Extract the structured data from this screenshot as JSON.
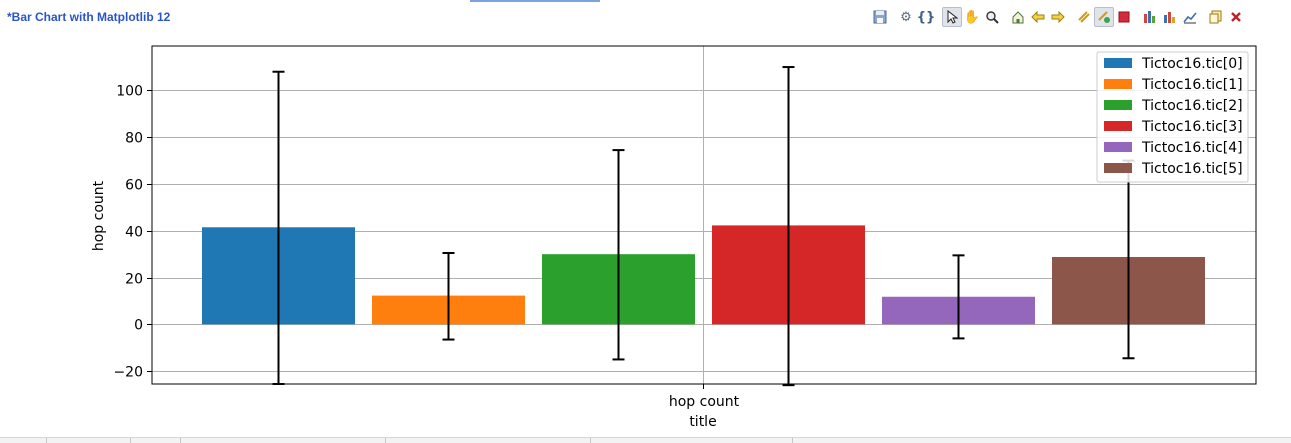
{
  "editor": {
    "title": "*Bar Chart with Matplotlib 12"
  },
  "toolbar": {
    "icons": [
      "save-icon",
      "gear-icon",
      "braces-icon",
      "pointer-icon",
      "hand-icon",
      "zoom-icon",
      "home-icon",
      "back-arrow-icon",
      "forward-arrow-icon",
      "link-icon",
      "link-active-icon",
      "stop-icon",
      "bar-chart-icon",
      "bar-chart-export-icon",
      "line-export-icon",
      "copy-icon",
      "close-icon"
    ]
  },
  "chart_data": {
    "type": "bar",
    "title": "title",
    "xlabel": "hop count",
    "ylabel": "hop count",
    "xtick": "hop count",
    "ylim": [
      -25.5,
      119
    ],
    "yticks": [
      -20,
      0,
      20,
      40,
      60,
      80,
      100
    ],
    "ytick_labels": [
      "−20",
      "0",
      "20",
      "40",
      "60",
      "80",
      "100"
    ],
    "grid": true,
    "legend_position": "top-right",
    "series": [
      {
        "name": "Tictoc16.tic[0]",
        "value": 41.5,
        "err_low": -25.5,
        "err_high": 108,
        "color": "#1f77b4"
      },
      {
        "name": "Tictoc16.tic[1]",
        "value": 12.3,
        "err_low": -6.5,
        "err_high": 30.5,
        "color": "#ff7f0e"
      },
      {
        "name": "Tictoc16.tic[2]",
        "value": 30.0,
        "err_low": -15,
        "err_high": 74.5,
        "color": "#2ca02c"
      },
      {
        "name": "Tictoc16.tic[3]",
        "value": 42.3,
        "err_low": -26,
        "err_high": 110,
        "color": "#d62728"
      },
      {
        "name": "Tictoc16.tic[4]",
        "value": 11.8,
        "err_low": -6,
        "err_high": 29.5,
        "color": "#9467bd"
      },
      {
        "name": "Tictoc16.tic[5]",
        "value": 28.8,
        "err_low": -14.5,
        "err_high": 70,
        "color": "#8c564b"
      }
    ]
  }
}
